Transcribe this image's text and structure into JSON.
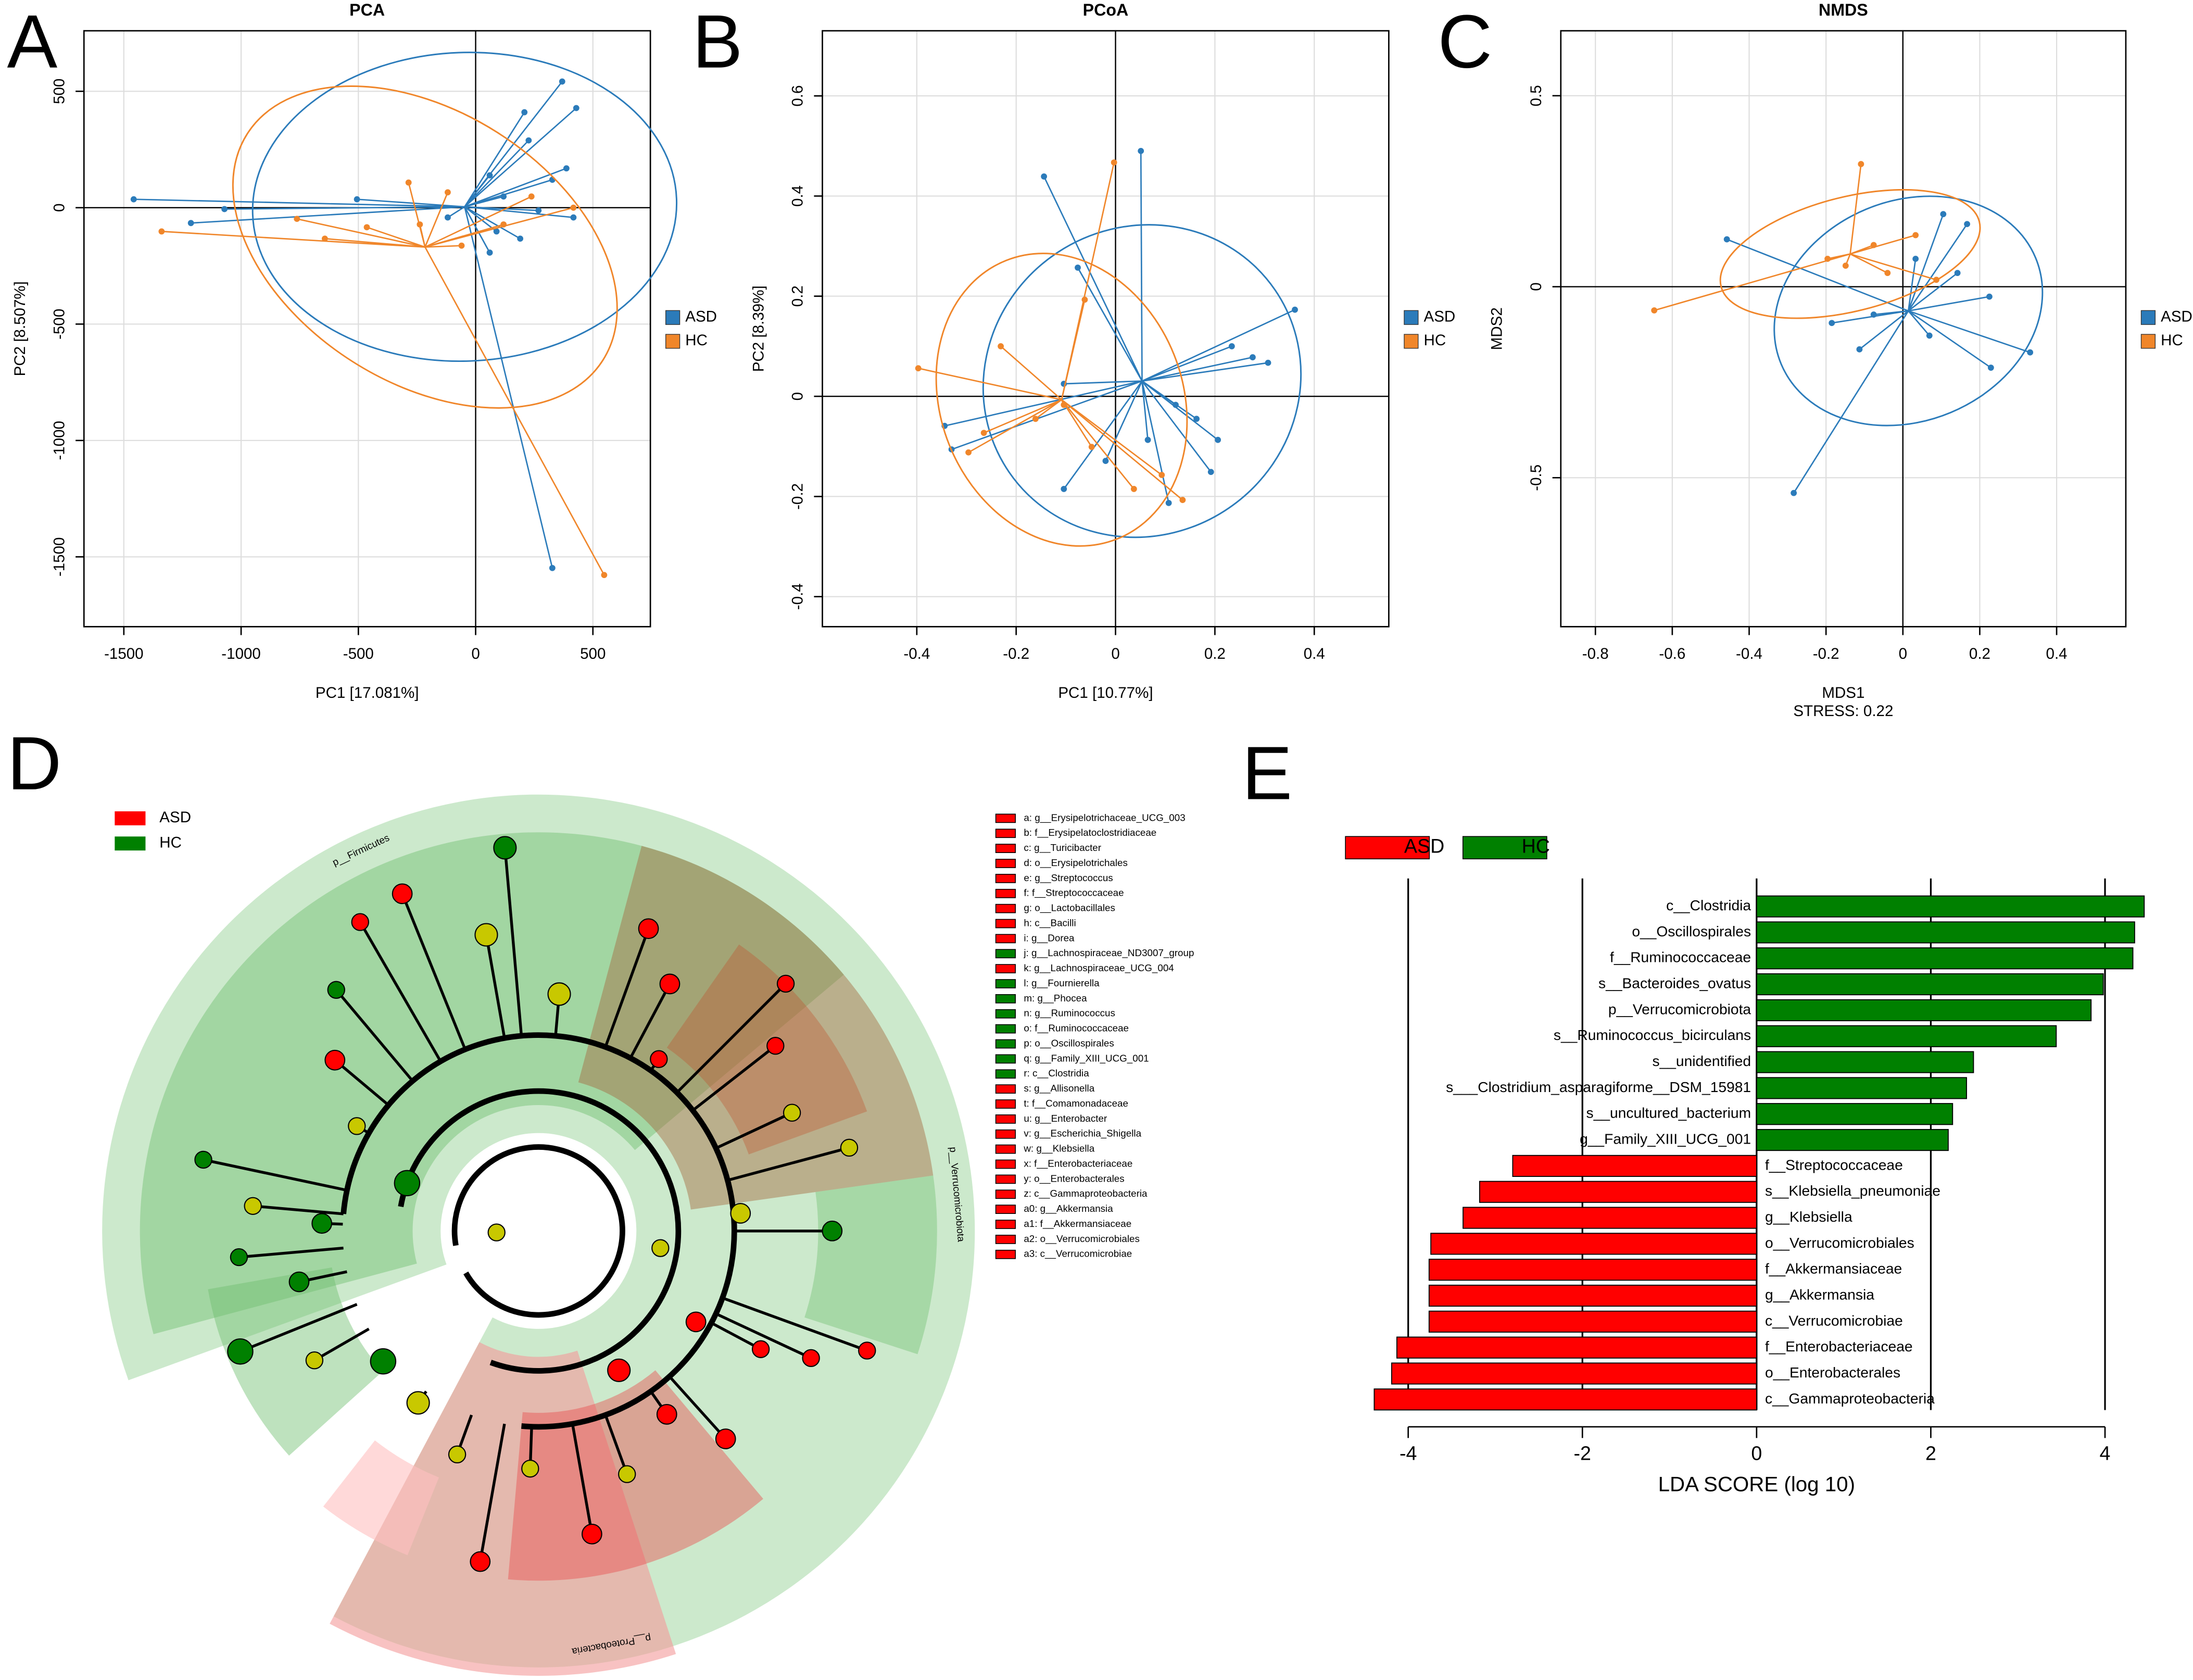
{
  "chart_data": [
    {
      "type": "scatter",
      "panel": "A",
      "title": "PCA",
      "xlabel": "PC1 [17.081%]",
      "ylabel": "PC2 [8.507%]",
      "xlim": [
        -1670,
        745
      ],
      "ylim": [
        -1800,
        760
      ],
      "xticks": [
        -1500,
        -1000,
        -500,
        0,
        500
      ],
      "yticks": [
        -1500,
        -1000,
        -500,
        0,
        500
      ],
      "grid": true,
      "legend": "right",
      "series": [
        {
          "name": "ASD",
          "color": "#2b7bba",
          "x": [
            -1458,
            -1214,
            -1071,
            -506,
            60,
            208,
            369,
            429,
            226,
            327,
            417,
            190,
            60,
            327,
            -119,
            119,
            387,
            268,
            89
          ],
          "values": [
            36,
            -66,
            -6,
            36,
            139,
            410,
            542,
            428,
            289,
            120,
            -42,
            -133,
            -193,
            -1548,
            -42,
            48,
            169,
            -12,
            -102
          ]
        },
        {
          "name": "HC",
          "color": "#f0862a",
          "x": [
            -1339,
            -762,
            -643,
            -286,
            -119,
            -464,
            -60,
            119,
            238,
            548,
            -238,
            417
          ],
          "values": [
            -102,
            -48,
            -133,
            108,
            66,
            -84,
            -163,
            -72,
            48,
            -1578,
            -72,
            0
          ]
        }
      ]
    },
    {
      "type": "scatter",
      "panel": "B",
      "title": "PCoA",
      "xlabel": "PC1  [10.77%]",
      "ylabel": "PC2  [8.39%]",
      "xlim": [
        -0.59,
        0.55
      ],
      "ylim": [
        -0.46,
        0.73
      ],
      "xticks": [
        -0.4,
        -0.2,
        0,
        0.2,
        0.4
      ],
      "yticks": [
        -0.4,
        -0.2,
        0,
        0.2,
        0.4,
        0.6
      ],
      "grid": true,
      "legend": "right",
      "series": [
        {
          "name": "ASD",
          "color": "#2b7bba",
          "x": [
            -0.144,
            0.051,
            -0.076,
            0.361,
            0.276,
            0.307,
            0.234,
            -0.344,
            -0.33,
            -0.104,
            0.107,
            0.192,
            0.206,
            0.163,
            -0.104,
            -0.02,
            0.065,
            0.121
          ],
          "values": [
            0.439,
            0.49,
            0.257,
            0.173,
            0.078,
            0.067,
            0.1,
            -0.059,
            -0.106,
            -0.185,
            -0.213,
            -0.151,
            -0.087,
            -0.045,
            0.025,
            -0.129,
            -0.087,
            -0.017
          ]
        },
        {
          "name": "HC",
          "color": "#f0862a",
          "x": [
            -0.397,
            -0.003,
            -0.231,
            -0.296,
            -0.265,
            -0.161,
            -0.062,
            0.135,
            0.093,
            -0.048,
            0.037,
            -0.104
          ],
          "values": [
            0.056,
            0.467,
            0.1,
            -0.112,
            -0.073,
            -0.045,
            0.193,
            -0.207,
            -0.157,
            -0.101,
            -0.185,
            -0.017
          ]
        }
      ]
    },
    {
      "type": "scatter",
      "panel": "C",
      "title": "NMDS",
      "xlabel": "MDS1",
      "ylabel": "MDS2",
      "annotation": "STRESS: 0.22",
      "xlim": [
        -0.89,
        0.58
      ],
      "ylim": [
        -0.89,
        0.67
      ],
      "xticks": [
        -0.8,
        -0.6,
        -0.4,
        -0.2,
        0,
        0.2,
        0.4
      ],
      "yticks": [
        -0.5,
        0,
        0.5
      ],
      "grid": true,
      "legend": "right",
      "series": [
        {
          "name": "ASD",
          "color": "#2b7bba",
          "x": [
            -0.458,
            -0.284,
            0.331,
            0.229,
            0.167,
            0.105,
            0.225,
            -0.185,
            0.069,
            -0.076,
            0.142,
            -0.113,
            0.033
          ],
          "values": [
            0.124,
            -0.54,
            -0.172,
            -0.212,
            0.164,
            0.19,
            -0.026,
            -0.095,
            -0.128,
            -0.073,
            0.036,
            -0.164,
            0.073
          ]
        },
        {
          "name": "HC",
          "color": "#f0862a",
          "x": [
            -0.647,
            -0.109,
            -0.196,
            -0.076,
            0.033,
            0.087,
            -0.04,
            -0.149
          ],
          "values": [
            -0.062,
            0.321,
            0.073,
            0.109,
            0.135,
            0.018,
            0.036,
            0.055
          ]
        }
      ]
    },
    {
      "type": "cladogram",
      "panel": "D",
      "series": [
        {
          "name": "ASD",
          "color": "#ff0000"
        },
        {
          "name": "HC",
          "color": "#008000"
        }
      ],
      "clade_labels": [
        "p__Firmicutes",
        "p__Verrucomicrobiota",
        "p__Proteobacteria"
      ],
      "key": [
        {
          "label": "a: g__Erysipelotrichaceae_UCG_003",
          "group": 0
        },
        {
          "label": "b: f__Erysipelatoclostridiaceae",
          "group": 0
        },
        {
          "label": "c: g__Turicibacter",
          "group": 0
        },
        {
          "label": "d: o__Erysipelotrichales",
          "group": 0
        },
        {
          "label": "e: g__Streptococcus",
          "group": 0
        },
        {
          "label": "f: f__Streptococcaceae",
          "group": 0
        },
        {
          "label": "g: o__Lactobacillales",
          "group": 0
        },
        {
          "label": "h: c__Bacilli",
          "group": 0
        },
        {
          "label": "i: g__Dorea",
          "group": 0
        },
        {
          "label": "j: g__Lachnospiraceae_ND3007_group",
          "group": 1
        },
        {
          "label": "k: g__Lachnospiraceae_UCG_004",
          "group": 0
        },
        {
          "label": "l: g__Fournierella",
          "group": 1
        },
        {
          "label": "m: g__Phocea",
          "group": 1
        },
        {
          "label": "n: g__Ruminococcus",
          "group": 1
        },
        {
          "label": "o: f__Ruminococcaceae",
          "group": 1
        },
        {
          "label": "p: o__Oscillospirales",
          "group": 1
        },
        {
          "label": "q: g__Family_XIII_UCG_001",
          "group": 1
        },
        {
          "label": "r: c__Clostridia",
          "group": 1
        },
        {
          "label": "s: g__Allisonella",
          "group": 0
        },
        {
          "label": "t: f__Comamonadaceae",
          "group": 0
        },
        {
          "label": "u: g__Enterobacter",
          "group": 0
        },
        {
          "label": "v: g__Escherichia_Shigella",
          "group": 0
        },
        {
          "label": "w: g__Klebsiella",
          "group": 0
        },
        {
          "label": "x: f__Enterobacteriaceae",
          "group": 0
        },
        {
          "label": "y: o__Enterobacterales",
          "group": 0
        },
        {
          "label": "z: c__Gammaproteobacteria",
          "group": 0
        },
        {
          "label": "a0: g__Akkermansia",
          "group": 0
        },
        {
          "label": "a1: f__Akkermansiaceae",
          "group": 0
        },
        {
          "label": "a2: o__Verrucomicrobiales",
          "group": 0
        },
        {
          "label": "a3: c__Verrucomicrobiae",
          "group": 0
        }
      ]
    },
    {
      "type": "hbar",
      "panel": "E",
      "xlabel": "LDA SCORE (log 10)",
      "xlim": [
        -4.56,
        4.56
      ],
      "xticks": [
        -4,
        -2,
        0,
        2,
        4
      ],
      "categories": [
        "c__Clostridia",
        "o__Oscillospirales",
        "f__Ruminococcaceae",
        "s__Bacteroides_ovatus",
        "p__Verrucomicrobiota",
        "s__Ruminococcus_bicirculans",
        "s__unidentified",
        "s___Clostridium_asparagiforme__DSM_15981",
        "s__uncultured_bacterium",
        "g__Family_XIII_UCG_001",
        "f__Streptococcaceae",
        "s__Klebsiella_pneumoniae",
        "g__Klebsiella",
        "o__Verrucomicrobiales",
        "f__Akkermansiaceae",
        "g__Akkermansia",
        "c__Verrucomicrobiae",
        "f__Enterobacteriaceae",
        "o__Enterobacterales",
        "c__Gammaproteobacteria"
      ],
      "series": [
        {
          "name": "ASD",
          "color": "#ff0000",
          "values": [
            null,
            null,
            null,
            null,
            null,
            null,
            null,
            null,
            null,
            null,
            -2.8,
            -3.18,
            -3.37,
            -3.74,
            -3.76,
            -3.76,
            -3.76,
            -4.13,
            -4.19,
            -4.39
          ]
        },
        {
          "name": "HC",
          "color": "#008000",
          "values": [
            4.45,
            4.34,
            4.32,
            3.98,
            3.84,
            3.44,
            2.49,
            2.41,
            2.25,
            2.2,
            null,
            null,
            null,
            null,
            null,
            null,
            null,
            null,
            null,
            null
          ]
        }
      ]
    }
  ]
}
